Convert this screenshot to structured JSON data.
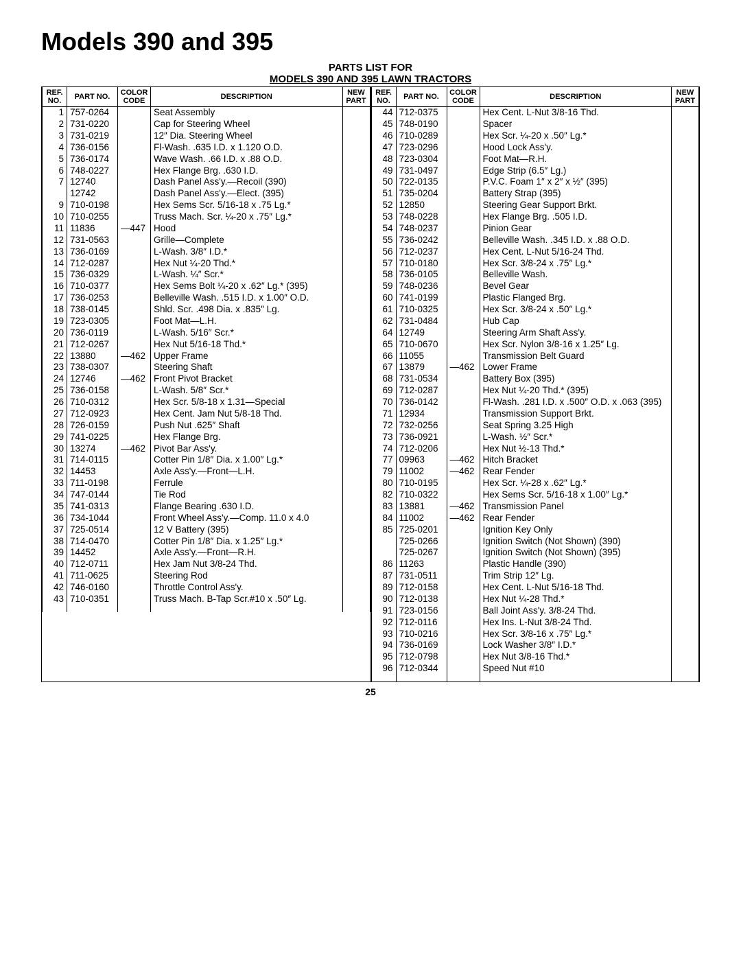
{
  "title": "Models 390 and 395",
  "subtitle1": "PARTS LIST FOR",
  "subtitle2": "MODELS 390 AND 395 LAWN TRACTORS",
  "headers": {
    "ref": "REF.\nNO.",
    "part": "PART\nNO.",
    "color": "COLOR\nCODE",
    "desc": "DESCRIPTION",
    "newp": "NEW\nPART"
  },
  "page_number": "25",
  "left": [
    {
      "ref": "1",
      "part": "757-0264",
      "color": "",
      "desc": "Seat Assembly"
    },
    {
      "ref": "2",
      "part": "731-0220",
      "color": "",
      "desc": "Cap for Steering Wheel"
    },
    {
      "ref": "3",
      "part": "731-0219",
      "color": "",
      "desc": "12″ Dia. Steering Wheel"
    },
    {
      "ref": "4",
      "part": "736-0156",
      "color": "",
      "desc": "Fl-Wash. .635 I.D. x 1.120 O.D."
    },
    {
      "ref": "5",
      "part": "736-0174",
      "color": "",
      "desc": "Wave Wash. .66 I.D. x .88 O.D."
    },
    {
      "ref": "6",
      "part": "748-0227",
      "color": "",
      "desc": "Hex Flange Brg. .630 I.D."
    },
    {
      "ref": "7",
      "part": "12740",
      "color": "",
      "desc": "Dash Panel Ass'y.—Recoil (390)"
    },
    {
      "ref": "",
      "part": "12742",
      "color": "",
      "desc": "Dash Panel Ass'y.—Elect. (395)"
    },
    {
      "ref": "9",
      "part": "710-0198",
      "color": "",
      "desc": "Hex Sems Scr. 5/16-18 x .75 Lg.*"
    },
    {
      "ref": "10",
      "part": "710-0255",
      "color": "",
      "desc": "Truss Mach. Scr. ¼-20 x .75″ Lg.*"
    },
    {
      "ref": "11",
      "part": "11836",
      "color": "—447",
      "desc": "Hood"
    },
    {
      "ref": "12",
      "part": "731-0563",
      "color": "",
      "desc": "Grille—Complete"
    },
    {
      "ref": "13",
      "part": "736-0169",
      "color": "",
      "desc": "L-Wash. 3/8″ I.D.*"
    },
    {
      "ref": "14",
      "part": "712-0287",
      "color": "",
      "desc": "Hex Nut ¼-20 Thd.*"
    },
    {
      "ref": "15",
      "part": "736-0329",
      "color": "",
      "desc": "L-Wash. ¼″ Scr.*"
    },
    {
      "ref": "16",
      "part": "710-0377",
      "color": "",
      "desc": "Hex Sems Bolt ¼-20 x .62″ Lg.* (395)"
    },
    {
      "ref": "17",
      "part": "736-0253",
      "color": "",
      "desc": "Belleville Wash. .515 I.D. x 1.00″ O.D."
    },
    {
      "ref": "18",
      "part": "738-0145",
      "color": "",
      "desc": "Shld. Scr. .498 Dia. x .835″ Lg."
    },
    {
      "ref": "19",
      "part": "723-0305",
      "color": "",
      "desc": "Foot Mat—L.H."
    },
    {
      "ref": "20",
      "part": "736-0119",
      "color": "",
      "desc": "L-Wash. 5/16″ Scr.*"
    },
    {
      "ref": "21",
      "part": "712-0267",
      "color": "",
      "desc": "Hex Nut 5/16-18 Thd.*"
    },
    {
      "ref": "22",
      "part": "13880",
      "color": "—462",
      "desc": "Upper Frame"
    },
    {
      "ref": "23",
      "part": "738-0307",
      "color": "",
      "desc": "Steering Shaft"
    },
    {
      "ref": "24",
      "part": "12746",
      "color": "—462",
      "desc": "Front Pivot Bracket"
    },
    {
      "ref": "25",
      "part": "736-0158",
      "color": "",
      "desc": "L-Wash. 5/8″ Scr.*"
    },
    {
      "ref": "26",
      "part": "710-0312",
      "color": "",
      "desc": "Hex Scr. 5/8-18 x 1.31—Special"
    },
    {
      "ref": "27",
      "part": "712-0923",
      "color": "",
      "desc": "Hex Cent. Jam Nut 5/8-18 Thd."
    },
    {
      "ref": "28",
      "part": "726-0159",
      "color": "",
      "desc": "Push Nut .625″ Shaft"
    },
    {
      "ref": "29",
      "part": "741-0225",
      "color": "",
      "desc": "Hex Flange Brg."
    },
    {
      "ref": "30",
      "part": "13274",
      "color": "—462",
      "desc": "Pivot Bar Ass'y."
    },
    {
      "ref": "31",
      "part": "714-0115",
      "color": "",
      "desc": "Cotter Pin 1/8″ Dia. x 1.00″ Lg.*"
    },
    {
      "ref": "32",
      "part": "14453",
      "color": "",
      "desc": "Axle Ass'y.—Front—L.H."
    },
    {
      "ref": "33",
      "part": "711-0198",
      "color": "",
      "desc": "Ferrule"
    },
    {
      "ref": "34",
      "part": "747-0144",
      "color": "",
      "desc": "Tie Rod"
    },
    {
      "ref": "35",
      "part": "741-0313",
      "color": "",
      "desc": "Flange Bearing .630 I.D."
    },
    {
      "ref": "36",
      "part": "734-1044",
      "color": "",
      "desc": "Front Wheel Ass'y.—Comp. 11.0 x 4.0"
    },
    {
      "ref": "37",
      "part": "725-0514",
      "color": "",
      "desc": "12 V Battery (395)"
    },
    {
      "ref": "38",
      "part": "714-0470",
      "color": "",
      "desc": "Cotter Pin 1/8″ Dia. x 1.25″ Lg.*"
    },
    {
      "ref": "39",
      "part": "14452",
      "color": "",
      "desc": "Axle Ass'y.—Front—R.H."
    },
    {
      "ref": "40",
      "part": "712-0711",
      "color": "",
      "desc": "Hex Jam Nut 3/8-24 Thd."
    },
    {
      "ref": "41",
      "part": "711-0625",
      "color": "",
      "desc": "Steering Rod"
    },
    {
      "ref": "42",
      "part": "746-0160",
      "color": "",
      "desc": "Throttle Control Ass'y."
    },
    {
      "ref": "43",
      "part": "710-0351",
      "color": "",
      "desc": "Truss Mach. B-Tap Scr.#10 x .50″ Lg."
    }
  ],
  "right": [
    {
      "ref": "44",
      "part": "712-0375",
      "color": "",
      "desc": "Hex Cent. L-Nut 3/8-16 Thd."
    },
    {
      "ref": "45",
      "part": "748-0190",
      "color": "",
      "desc": "Spacer"
    },
    {
      "ref": "46",
      "part": "710-0289",
      "color": "",
      "desc": "Hex Scr. ¼-20 x .50″ Lg.*"
    },
    {
      "ref": "47",
      "part": "723-0296",
      "color": "",
      "desc": "Hood Lock Ass'y."
    },
    {
      "ref": "48",
      "part": "723-0304",
      "color": "",
      "desc": "Foot Mat—R.H."
    },
    {
      "ref": "49",
      "part": "731-0497",
      "color": "",
      "desc": "Edge Strip (6.5″ Lg.)"
    },
    {
      "ref": "50",
      "part": "722-0135",
      "color": "",
      "desc": "P.V.C. Foam 1″ x 2″ x ½″ (395)"
    },
    {
      "ref": "51",
      "part": "735-0204",
      "color": "",
      "desc": "Battery Strap (395)"
    },
    {
      "ref": "52",
      "part": "12850",
      "color": "",
      "desc": "Steering Gear Support Brkt."
    },
    {
      "ref": "53",
      "part": "748-0228",
      "color": "",
      "desc": "Hex Flange Brg. .505 I.D."
    },
    {
      "ref": "54",
      "part": "748-0237",
      "color": "",
      "desc": "Pinion Gear"
    },
    {
      "ref": "55",
      "part": "736-0242",
      "color": "",
      "desc": "Belleville Wash. .345 I.D. x .88 O.D."
    },
    {
      "ref": "56",
      "part": "712-0237",
      "color": "",
      "desc": "Hex Cent. L-Nut 5/16-24 Thd."
    },
    {
      "ref": "57",
      "part": "710-0180",
      "color": "",
      "desc": "Hex Scr. 3/8-24 x .75″ Lg.*"
    },
    {
      "ref": "58",
      "part": "736-0105",
      "color": "",
      "desc": "Belleville Wash."
    },
    {
      "ref": "59",
      "part": "748-0236",
      "color": "",
      "desc": "Bevel Gear"
    },
    {
      "ref": "60",
      "part": "741-0199",
      "color": "",
      "desc": "Plastic Flanged Brg."
    },
    {
      "ref": "61",
      "part": "710-0325",
      "color": "",
      "desc": "Hex Scr. 3/8-24 x .50″ Lg.*"
    },
    {
      "ref": "62",
      "part": "731-0484",
      "color": "",
      "desc": "Hub Cap"
    },
    {
      "ref": "64",
      "part": "12749",
      "color": "",
      "desc": "Steering Arm Shaft Ass'y."
    },
    {
      "ref": "65",
      "part": "710-0670",
      "color": "",
      "desc": "Hex Scr. Nylon 3/8-16 x 1.25″ Lg."
    },
    {
      "ref": "66",
      "part": "11055",
      "color": "",
      "desc": "Transmission Belt Guard"
    },
    {
      "ref": "67",
      "part": "13879",
      "color": "—462",
      "desc": "Lower Frame"
    },
    {
      "ref": "68",
      "part": "731-0534",
      "color": "",
      "desc": "Battery Box (395)"
    },
    {
      "ref": "69",
      "part": "712-0287",
      "color": "",
      "desc": "Hex Nut ¼-20 Thd.* (395)"
    },
    {
      "ref": "70",
      "part": "736-0142",
      "color": "",
      "desc": "Fl-Wash. .281 I.D. x .500″ O.D. x .063 (395)"
    },
    {
      "ref": "71",
      "part": "12934",
      "color": "",
      "desc": "Transmission Support Brkt."
    },
    {
      "ref": "72",
      "part": "732-0256",
      "color": "",
      "desc": "Seat Spring 3.25 High"
    },
    {
      "ref": "73",
      "part": "736-0921",
      "color": "",
      "desc": "L-Wash. ½″ Scr.*"
    },
    {
      "ref": "74",
      "part": "712-0206",
      "color": "",
      "desc": "Hex Nut ½-13 Thd.*"
    },
    {
      "ref": "77",
      "part": "09963",
      "color": "—462",
      "desc": "Hitch Bracket"
    },
    {
      "ref": "79",
      "part": "11002",
      "color": "—462",
      "desc": "Rear Fender"
    },
    {
      "ref": "80",
      "part": "710-0195",
      "color": "",
      "desc": "Hex Scr. ¼-28 x .62″ Lg.*"
    },
    {
      "ref": "82",
      "part": "710-0322",
      "color": "",
      "desc": "Hex Sems Scr. 5/16-18 x 1.00″ Lg.*"
    },
    {
      "ref": "83",
      "part": "13881",
      "color": "—462",
      "desc": "Transmission Panel"
    },
    {
      "ref": "84",
      "part": "11002",
      "color": "—462",
      "desc": "Rear Fender"
    },
    {
      "ref": "85",
      "part": "725-0201",
      "color": "",
      "desc": "Ignition Key Only"
    },
    {
      "ref": "",
      "part": "725-0266",
      "color": "",
      "desc": "Ignition Switch (Not Shown) (390)"
    },
    {
      "ref": "",
      "part": "725-0267",
      "color": "",
      "desc": "Ignition Switch (Not Shown) (395)"
    },
    {
      "ref": "86",
      "part": "11263",
      "color": "",
      "desc": "Plastic Handle (390)"
    },
    {
      "ref": "87",
      "part": "731-0511",
      "color": "",
      "desc": "Trim Strip 12″ Lg."
    },
    {
      "ref": "89",
      "part": "712-0158",
      "color": "",
      "desc": "Hex Cent. L-Nut 5/16-18 Thd."
    },
    {
      "ref": "90",
      "part": "712-0138",
      "color": "",
      "desc": "Hex Nut ¼-28 Thd.*"
    },
    {
      "ref": "91",
      "part": "723-0156",
      "color": "",
      "desc": "Ball Joint Ass'y. 3/8-24 Thd."
    },
    {
      "ref": "92",
      "part": "712-0116",
      "color": "",
      "desc": "Hex Ins. L-Nut 3/8-24 Thd."
    },
    {
      "ref": "93",
      "part": "710-0216",
      "color": "",
      "desc": "Hex Scr. 3/8-16 x .75″ Lg.*"
    },
    {
      "ref": "94",
      "part": "736-0169",
      "color": "",
      "desc": "Lock Washer 3/8″ I.D.*"
    },
    {
      "ref": "95",
      "part": "712-0798",
      "color": "",
      "desc": "Hex Nut 3/8-16 Thd.*"
    },
    {
      "ref": "96",
      "part": "712-0344",
      "color": "",
      "desc": "Speed Nut #10"
    }
  ]
}
